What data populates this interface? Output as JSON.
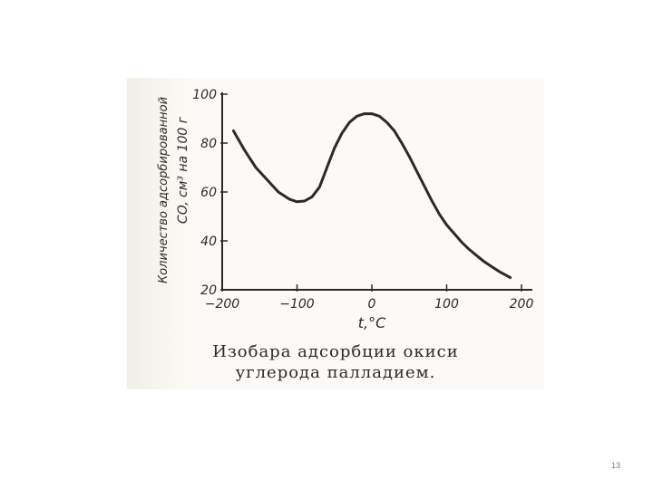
{
  "chart_data": {
    "type": "line",
    "ylabel_line1": "Количество адсорбированной",
    "ylabel_line2": "CO, см³ на 100 г",
    "xlabel": "t,°C",
    "xlim": [
      -200,
      200
    ],
    "ylim": [
      20,
      100
    ],
    "x_ticks": [
      "−200",
      "−100",
      "0",
      "100",
      "200"
    ],
    "y_ticks": [
      "100",
      "80",
      "60",
      "40",
      "20"
    ],
    "grid": false,
    "series": [
      {
        "x": [
          -185,
          -170,
          -155,
          -140,
          -125,
          -110,
          -100,
          -90,
          -80,
          -70,
          -60,
          -50,
          -40,
          -30,
          -20,
          -10,
          0,
          10,
          20,
          30,
          40,
          50,
          60,
          70,
          80,
          90,
          100,
          110,
          120,
          130,
          140,
          150,
          160,
          170,
          185
        ],
        "y": [
          85,
          77,
          70,
          65,
          60,
          57,
          56,
          56.3,
          58,
          62,
          70,
          78,
          84,
          88.5,
          91,
          92,
          92,
          91,
          88.5,
          85,
          80,
          74.5,
          68.5,
          62.5,
          56.5,
          51,
          46.5,
          43,
          39.5,
          36.5,
          34,
          31.5,
          29.5,
          27.5,
          25
        ]
      }
    ]
  },
  "caption": {
    "line1": "Изобара адсорбции окиси",
    "line2": "углерода палладием."
  },
  "page_number": "13",
  "colors": {
    "ink": "#2a2a2a",
    "paper": "#fbfaf6"
  }
}
